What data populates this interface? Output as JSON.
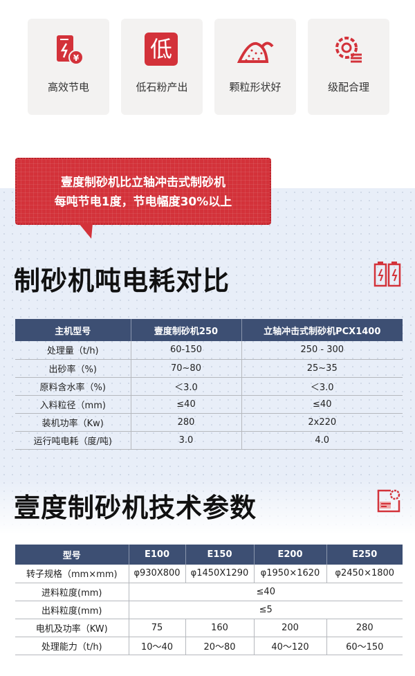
{
  "features": [
    {
      "label": "高效节电",
      "icon": "power-saving-icon"
    },
    {
      "label": "低石粉产出",
      "icon": "low-badge-icon",
      "icon_text": "低"
    },
    {
      "label": "颗粒形状好",
      "icon": "sand-pile-icon"
    },
    {
      "label": "级配合理",
      "icon": "gear-list-icon"
    }
  ],
  "bubble": {
    "line1": "壹度制砂机比立轴冲击式制砂机",
    "line2": "每吨节电1度，节电幅度30%以上"
  },
  "section1": {
    "title": "制砂机吨电耗对比",
    "icon": "battery-icon",
    "headers": [
      "主机型号",
      "壹度制砂机250",
      "立轴冲击式制砂机PCX1400"
    ],
    "rows": [
      [
        "处理量（t/h)",
        "60-150",
        "250 - 300"
      ],
      [
        "出砂率（%)",
        "70~80",
        "25~35"
      ],
      [
        "原料含水率（%)",
        "＜3.0",
        "＜3.0"
      ],
      [
        "入料粒径（mm)",
        "≤40",
        "≤40"
      ],
      [
        "装机功率（Kw)",
        "280",
        "2x220"
      ],
      [
        "运行吨电耗（度/吨)",
        "3.0",
        "4.0"
      ]
    ]
  },
  "section2": {
    "title": "壹度制砂机技术参数",
    "icon": "settings-document-icon",
    "headers": [
      "型号",
      "E100",
      "E150",
      "E200",
      "E250"
    ],
    "rows": [
      [
        "转子规格（mm×mm)",
        "φ930X800",
        "φ1450X1290",
        "φ1950×1620",
        "φ2450×1800"
      ],
      [
        "进料粒度(mm)",
        "≤40"
      ],
      [
        "出料粒度(mm)",
        "≤5"
      ],
      [
        "电机及功率（KW)",
        "75",
        "160",
        "200",
        "280"
      ],
      [
        "处理能力（t/h)",
        "10～40",
        "20～80",
        "40～120",
        "60～150"
      ]
    ]
  },
  "colors": {
    "accent": "#d3323a",
    "table_header": "#3d4f73"
  }
}
